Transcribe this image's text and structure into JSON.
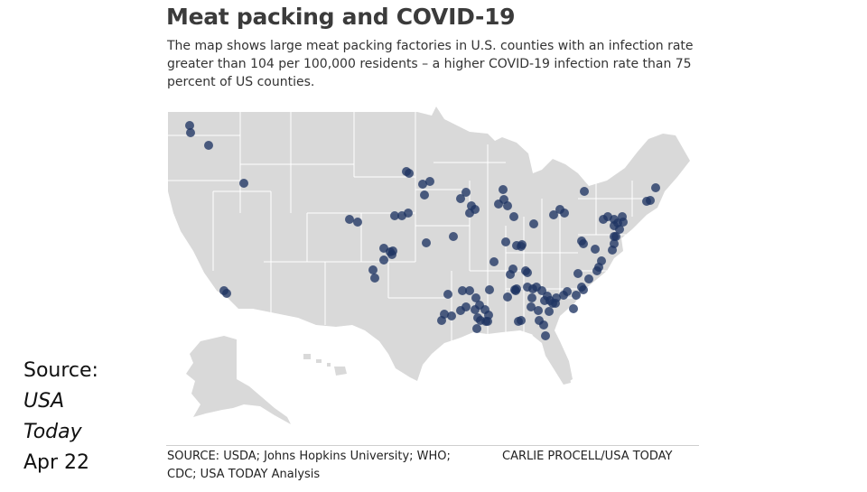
{
  "header": {
    "title": "Meat packing and COVID-19",
    "subtitle": "The map shows large meat packing factories in U.S. counties with an infection rate greater than 104 per 100,000 residents – a higher COVID-19 infection rate than 75 percent of US counties."
  },
  "footer": {
    "source": "SOURCE: USDA; Johns Hopkins University; WHO; CDC; USA TODAY Analysis",
    "credit": "CARLIE PROCELL/USA TODAY"
  },
  "side_note": {
    "label": "Source:",
    "publication_line1": "USA",
    "publication_line2": "Today",
    "date": "Apr 22"
  },
  "colors": {
    "land": "#d9d9d9",
    "borders": "#ffffff",
    "marker": "#1f3563"
  }
}
